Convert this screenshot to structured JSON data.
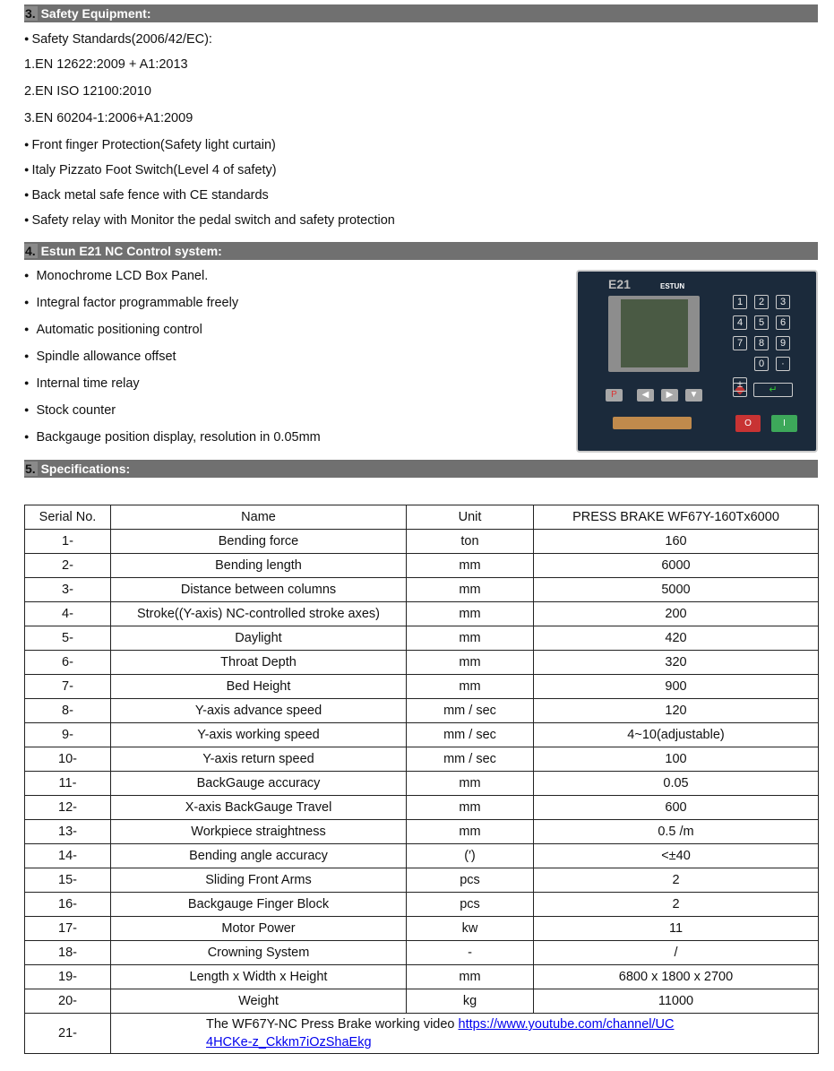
{
  "sections": {
    "safety": {
      "num": "3.",
      "title": "Safety Equipment:",
      "items": [
        {
          "bullet": true,
          "text": "Safety Standards(2006/42/EC):"
        },
        {
          "bullet": false,
          "text": "1.EN 12622:2009 + A1:2013"
        },
        {
          "bullet": false,
          "text": "2.EN ISO 12100:2010"
        },
        {
          "bullet": false,
          "text": "3.EN 60204-1:2006+A1:2009"
        },
        {
          "bullet": true,
          "text": "Front finger Protection(Safety light curtain)"
        },
        {
          "bullet": true,
          "text": "Italy Pizzato Foot Switch(Level 4 of safety)"
        },
        {
          "bullet": true,
          "text": "Back metal safe fence with CE standards"
        },
        {
          "bullet": true,
          "text": "Safety relay with Monitor the pedal switch and safety protection"
        }
      ]
    },
    "control": {
      "num": "4.",
      "title": "Estun E21 NC Control system:",
      "items": [
        "Monochrome LCD Box Panel.",
        "Integral factor programmable freely",
        "Automatic positioning control",
        "Spindle allowance offset",
        "Internal time relay",
        "Stock counter",
        "Backgauge position display, resolution in 0.05mm"
      ],
      "panel": {
        "model": "E21",
        "brand": "ESTUN",
        "keys": [
          "1",
          "2",
          "3",
          "4",
          "5",
          "6",
          "7",
          "8",
          "9",
          "0",
          "·",
          "±"
        ],
        "p_key": "P",
        "stop": "O",
        "start": "I"
      }
    },
    "specs": {
      "num": "5.",
      "title": "Specifications:"
    }
  },
  "table": {
    "headers": [
      "Serial No.",
      "Name",
      "Unit",
      "PRESS BRAKE WF67Y-160Tx6000"
    ],
    "rows": [
      [
        "1-",
        "Bending force",
        "ton",
        "160"
      ],
      [
        "2-",
        "Bending length",
        "mm",
        "6000"
      ],
      [
        "3-",
        "Distance between columns",
        "mm",
        "5000"
      ],
      [
        "4-",
        "Stroke((Y-axis) NC-controlled stroke axes)",
        "mm",
        "200"
      ],
      [
        "5-",
        "Daylight",
        "mm",
        "420"
      ],
      [
        "6-",
        "Throat Depth",
        "mm",
        "320"
      ],
      [
        "7-",
        "Bed Height",
        "mm",
        "900"
      ],
      [
        "8-",
        "Y-axis advance speed",
        "mm / sec",
        "120"
      ],
      [
        "9-",
        "Y-axis working speed",
        "mm / sec",
        "4~10(adjustable)"
      ],
      [
        "10-",
        "Y-axis return speed",
        "mm / sec",
        "100"
      ],
      [
        "11-",
        "BackGauge accuracy",
        "mm",
        "0.05"
      ],
      [
        "12-",
        "X-axis BackGauge Travel",
        "mm",
        "600"
      ],
      [
        "13-",
        "Workpiece straightness",
        "mm",
        "0.5 /m"
      ],
      [
        "14-",
        "Bending angle accuracy",
        "(′)",
        "<±40"
      ],
      [
        "15-",
        "Sliding Front Arms",
        "pcs",
        "2"
      ],
      [
        "16-",
        "Backgauge Finger Block",
        "pcs",
        "2"
      ],
      [
        "17-",
        "Motor Power",
        "kw",
        "11"
      ],
      [
        "18-",
        "Crowning System",
        "-",
        "/"
      ],
      [
        "19-",
        "Length x Width x Height",
        "mm",
        "6800 x 1800 x 2700"
      ],
      [
        "20-",
        "Weight",
        "kg",
        "11000"
      ]
    ],
    "last": {
      "serial": "21-",
      "text": "The WF67Y-NC Press Brake working video ",
      "link": "https://www.youtube.com/channel/UC4HCKe-z_Ckkm7iOzShaEkg"
    }
  }
}
